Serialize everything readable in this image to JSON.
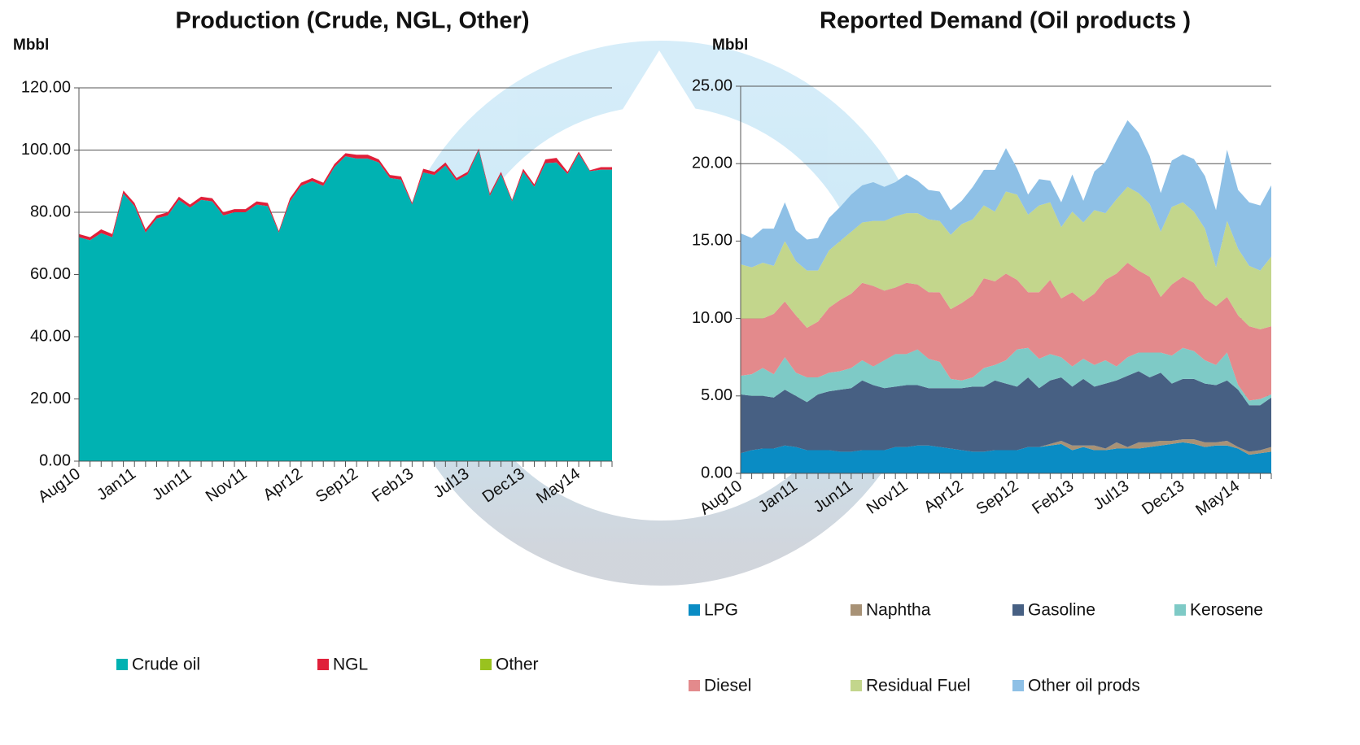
{
  "chart_data": [
    {
      "type": "area",
      "stacked": true,
      "title": "Production (Crude, NGL, Other)",
      "y_label": "Mbbl",
      "categories": [
        "Aug10",
        null,
        null,
        null,
        null,
        "Jan11",
        null,
        null,
        null,
        null,
        "Jun11",
        null,
        null,
        null,
        null,
        "Nov11",
        null,
        null,
        null,
        null,
        "Apr12",
        null,
        null,
        null,
        null,
        "Sep12",
        null,
        null,
        null,
        null,
        "Feb13",
        null,
        null,
        null,
        null,
        "Jul13",
        null,
        null,
        null,
        null,
        "Dec13",
        null,
        null,
        null,
        null,
        "May14",
        null,
        null,
        null
      ],
      "series": [
        {
          "name": "Crude oil",
          "color": "#00b2b2",
          "values": [
            72,
            71,
            73.3,
            72,
            86,
            82,
            73.5,
            78,
            79,
            84,
            81.5,
            84,
            83.5,
            79,
            80,
            80,
            82.5,
            82,
            73.5,
            83.5,
            88.5,
            90,
            88.5,
            94.5,
            98,
            97.3,
            97.3,
            96,
            91,
            90.5,
            82.5,
            92.8,
            92,
            95,
            90.2,
            92.2,
            100,
            85.3,
            92.3,
            83.5,
            93,
            88.2,
            95.8,
            96,
            92.3,
            98.8,
            93.2,
            93.7,
            93.7
          ]
        },
        {
          "name": "NGL",
          "color": "#e0203a",
          "values": [
            1.0,
            1.0,
            1.2,
            1.0,
            1.0,
            1.0,
            1.0,
            1.0,
            1.0,
            1.0,
            1.0,
            1.0,
            1.0,
            1.0,
            1.0,
            1.0,
            1.0,
            1.0,
            0.5,
            1.0,
            1.0,
            1.0,
            1.0,
            1.0,
            1.0,
            1.2,
            1.2,
            1.0,
            1.0,
            1.0,
            0.5,
            1.2,
            1.0,
            1.0,
            0.8,
            0.8,
            0.5,
            0.7,
            0.7,
            0.5,
            1.0,
            0.8,
            1.2,
            1.5,
            0.7,
            0.7,
            0.3,
            0.8,
            0.8
          ]
        },
        {
          "name": "Other",
          "color": "#99c21f",
          "values": [
            0,
            0,
            0,
            0,
            0,
            0,
            0,
            0,
            0,
            0,
            0,
            0,
            0,
            0,
            0,
            0,
            0,
            0,
            0,
            0,
            0,
            0,
            0,
            0,
            0,
            0,
            0,
            0,
            0,
            0,
            0,
            0,
            0,
            0,
            0,
            0,
            0,
            0,
            0,
            0,
            0,
            0,
            0,
            0,
            0,
            0,
            0,
            0,
            0
          ]
        }
      ],
      "ylim": [
        0,
        120
      ],
      "yticks": [
        {
          "value": 0,
          "label": "0.00"
        },
        {
          "value": 20,
          "label": "20.00"
        },
        {
          "value": 40,
          "label": "40.00"
        },
        {
          "value": 60,
          "label": "60.00"
        },
        {
          "value": 80,
          "label": "80.00"
        },
        {
          "value": 100,
          "label": "100.00"
        },
        {
          "value": 120,
          "label": "120.00"
        }
      ],
      "grid": true
    },
    {
      "type": "area",
      "stacked": true,
      "title": "Reported Demand (Oil products )",
      "y_label": "Mbbl",
      "categories": [
        "Aug10",
        null,
        null,
        null,
        null,
        "Jan11",
        null,
        null,
        null,
        null,
        "Jun11",
        null,
        null,
        null,
        null,
        "Nov11",
        null,
        null,
        null,
        null,
        "Apr12",
        null,
        null,
        null,
        null,
        "Sep12",
        null,
        null,
        null,
        null,
        "Feb13",
        null,
        null,
        null,
        null,
        "Jul13",
        null,
        null,
        null,
        null,
        "Dec13",
        null,
        null,
        null,
        null,
        "May14",
        null,
        null,
        null
      ],
      "series": [
        {
          "name": "LPG",
          "color": "#0a8cc4",
          "values": [
            1.3,
            1.5,
            1.6,
            1.6,
            1.8,
            1.7,
            1.5,
            1.5,
            1.5,
            1.4,
            1.4,
            1.5,
            1.5,
            1.5,
            1.7,
            1.7,
            1.8,
            1.8,
            1.7,
            1.6,
            1.5,
            1.4,
            1.4,
            1.5,
            1.5,
            1.5,
            1.7,
            1.7,
            1.8,
            1.9,
            1.5,
            1.7,
            1.5,
            1.5,
            1.6,
            1.6,
            1.6,
            1.7,
            1.8,
            1.9,
            2.0,
            1.9,
            1.7,
            1.8,
            1.8,
            1.6,
            1.2,
            1.3,
            1.4
          ]
        },
        {
          "name": "Naphtha",
          "color": "#a89276",
          "values": [
            0,
            0,
            0,
            0,
            0,
            0,
            0,
            0,
            0,
            0,
            0,
            0,
            0,
            0,
            0,
            0,
            0,
            0,
            0,
            0,
            0,
            0,
            0,
            0,
            0,
            0,
            0,
            0,
            0.1,
            0.2,
            0.3,
            0.1,
            0.3,
            0.1,
            0.4,
            0.1,
            0.4,
            0.3,
            0.3,
            0.2,
            0.2,
            0.3,
            0.3,
            0.2,
            0.3,
            0.1,
            0.2,
            0.2,
            0.3
          ]
        },
        {
          "name": "Gasoline",
          "color": "#476083",
          "values": [
            3.8,
            3.5,
            3.4,
            3.3,
            3.6,
            3.3,
            3.1,
            3.6,
            3.8,
            4.0,
            4.1,
            4.5,
            4.2,
            4.0,
            3.9,
            4.0,
            3.9,
            3.7,
            3.8,
            3.9,
            4.0,
            4.2,
            4.2,
            4.5,
            4.3,
            4.1,
            4.5,
            3.8,
            4.1,
            4.1,
            3.8,
            4.3,
            3.8,
            4.2,
            4.0,
            4.6,
            4.6,
            4.2,
            4.4,
            3.7,
            3.9,
            3.9,
            3.8,
            3.7,
            3.9,
            3.7,
            3.0,
            2.9,
            3.2
          ]
        },
        {
          "name": "Kerosene",
          "color": "#7ecac6",
          "values": [
            1.2,
            1.4,
            1.8,
            1.5,
            2.1,
            1.5,
            1.6,
            1.1,
            1.2,
            1.2,
            1.3,
            1.3,
            1.2,
            1.8,
            2.1,
            2.0,
            2.3,
            1.9,
            1.7,
            0.6,
            0.5,
            0.6,
            1.2,
            1.0,
            1.5,
            2.4,
            1.9,
            1.9,
            1.7,
            1.3,
            1.3,
            1.3,
            1.4,
            1.5,
            0.9,
            1.2,
            1.2,
            1.6,
            1.3,
            1.8,
            2.0,
            1.8,
            1.5,
            1.3,
            1.8,
            0.3,
            0.3,
            0.4,
            0.2
          ]
        },
        {
          "name": "Diesel",
          "color": "#e38a8c",
          "values": [
            3.7,
            3.6,
            3.2,
            3.9,
            3.6,
            3.7,
            3.2,
            3.6,
            4.2,
            4.6,
            4.8,
            5.0,
            5.2,
            4.5,
            4.3,
            4.6,
            4.2,
            4.3,
            4.5,
            4.5,
            5.0,
            5.3,
            5.8,
            5.4,
            5.6,
            4.5,
            3.6,
            4.3,
            4.8,
            3.8,
            4.8,
            3.7,
            4.6,
            5.2,
            6.0,
            6.1,
            5.3,
            4.9,
            3.6,
            4.6,
            4.6,
            4.4,
            4.0,
            3.8,
            3.6,
            4.5,
            4.8,
            4.5,
            4.4
          ]
        },
        {
          "name": "Residual Fuel",
          "color": "#c3d68c",
          "values": [
            3.5,
            3.3,
            3.6,
            3.1,
            3.9,
            3.5,
            3.7,
            3.3,
            3.7,
            3.8,
            4.0,
            3.9,
            4.2,
            4.5,
            4.6,
            4.5,
            4.6,
            4.7,
            4.6,
            4.8,
            5.1,
            4.9,
            4.7,
            4.5,
            5.3,
            5.5,
            5.0,
            5.6,
            5.0,
            4.6,
            5.2,
            5.1,
            5.4,
            4.3,
            4.8,
            4.9,
            5.0,
            4.7,
            4.2,
            5.0,
            4.8,
            4.6,
            4.5,
            2.5,
            4.9,
            4.3,
            3.9,
            3.8,
            4.5
          ]
        },
        {
          "name": "Other oil prods",
          "color": "#8ec0e6",
          "values": [
            2.0,
            1.9,
            2.2,
            2.4,
            2.5,
            2.0,
            2.0,
            2.1,
            2.1,
            2.2,
            2.4,
            2.4,
            2.5,
            2.2,
            2.2,
            2.5,
            2.1,
            1.9,
            1.9,
            1.6,
            1.5,
            2.1,
            2.3,
            2.7,
            2.8,
            1.7,
            1.3,
            1.7,
            1.4,
            1.6,
            2.4,
            1.4,
            2.5,
            3.3,
            3.8,
            4.3,
            3.9,
            3.1,
            2.5,
            3.0,
            3.1,
            3.4,
            3.4,
            3.7,
            4.6,
            3.8,
            4.1,
            4.2,
            4.6
          ]
        }
      ],
      "ylim": [
        0,
        25
      ],
      "yticks": [
        {
          "value": 0,
          "label": "0.00"
        },
        {
          "value": 5,
          "label": "5.00"
        },
        {
          "value": 10,
          "label": "10.00"
        },
        {
          "value": 15,
          "label": "15.00"
        },
        {
          "value": 20,
          "label": "20.00"
        },
        {
          "value": 25,
          "label": "25.00"
        }
      ],
      "grid": true
    }
  ]
}
